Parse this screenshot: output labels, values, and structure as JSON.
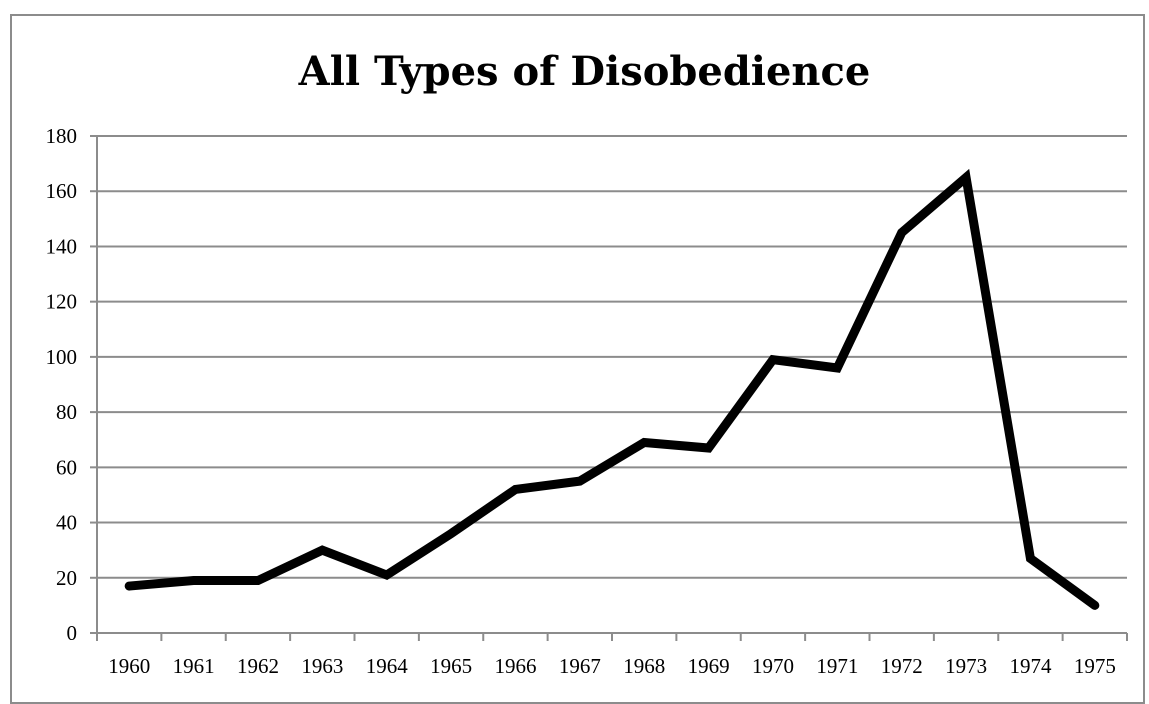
{
  "chart_data": {
    "type": "line",
    "title": "All Types of Disobedience",
    "xlabel": "",
    "ylabel": "",
    "categories": [
      "1960",
      "1961",
      "1962",
      "1963",
      "1964",
      "1965",
      "1966",
      "1967",
      "1968",
      "1969",
      "1970",
      "1971",
      "1972",
      "1973",
      "1974",
      "1975"
    ],
    "series": [
      {
        "values": [
          17,
          19,
          19,
          30,
          21,
          36,
          52,
          55,
          69,
          67,
          99,
          96,
          145,
          165,
          27,
          10
        ]
      }
    ],
    "ylim": [
      0,
      180
    ],
    "yticks": [
      "0",
      "20",
      "40",
      "60",
      "80",
      "100",
      "120",
      "140",
      "160",
      "180"
    ],
    "grid": true,
    "legend": "none",
    "colors": {
      "line": "#000000",
      "grid": "#8c8c8c",
      "axis": "#8c8c8c"
    }
  }
}
